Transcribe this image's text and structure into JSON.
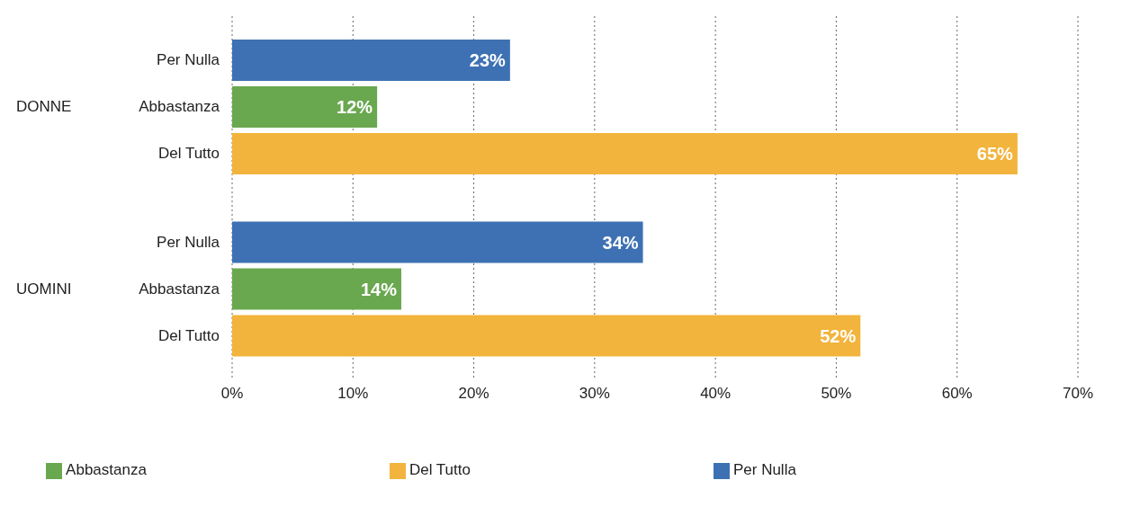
{
  "chart_data": {
    "type": "bar",
    "orientation": "horizontal",
    "categories": [
      "DONNE",
      "UOMINI"
    ],
    "series": [
      {
        "name": "Per Nulla",
        "color": "#3e71b3",
        "values": [
          23,
          34
        ],
        "value_labels": [
          "23%",
          "34%"
        ]
      },
      {
        "name": "Abbastanza",
        "color": "#6aa84f",
        "values": [
          12,
          14
        ],
        "value_labels": [
          "12%",
          "14%"
        ]
      },
      {
        "name": "Del Tutto",
        "color": "#f2b43c",
        "values": [
          65,
          52
        ],
        "value_labels": [
          "65%",
          "52%"
        ]
      }
    ],
    "xlim": [
      0,
      70
    ],
    "xticks": [
      {
        "value": 0,
        "label": "0%"
      },
      {
        "value": 10,
        "label": "10%"
      },
      {
        "value": 20,
        "label": "20%"
      },
      {
        "value": 30,
        "label": "30%"
      },
      {
        "value": 40,
        "label": "40%"
      },
      {
        "value": 50,
        "label": "50%"
      },
      {
        "value": 60,
        "label": "60%"
      },
      {
        "value": 70,
        "label": "70%"
      }
    ],
    "grid": "x",
    "legend": "bottom"
  }
}
